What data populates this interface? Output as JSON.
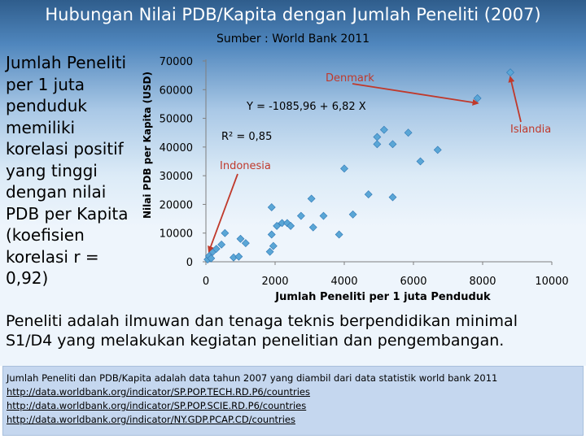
{
  "slide": {
    "title": "Hubungan Nilai PDB/Kapita dengan Jumlah Peneliti (2007)",
    "subtitle": "Sumber : World Bank 2011"
  },
  "body_left": {
    "lines": [
      "Jumlah Peneliti",
      "per 1 juta",
      "penduduk",
      "memiliki",
      "korelasi positif",
      "yang  tinggi",
      "dengan nilai",
      "PDB per Kapita",
      "(koefisien",
      "korelasi r =",
      "0,92)"
    ]
  },
  "bottom_paragraph": {
    "lines": [
      "Peneliti adalah ilmuwan dan tenaga teknis berpendidikan minimal",
      "S1/D4 yang melakukan kegiatan penelitian dan pengembangan."
    ]
  },
  "note": {
    "text": "Jumlah Peneliti  dan PDB/Kapita adalah data tahun 2007 yang diambil dari data statistik world bank 2011",
    "links": [
      "http://data.worldbank.org/indicator/SP.POP.TECH.RD.P6/countries",
      "http://data.worldbank.org/indicator/SP.POP.SCIE.RD.P6/countries",
      "http://data.worldbank.org/indicator/NY.GDP.PCAP.CD/countries"
    ]
  },
  "colors": {
    "marker": "#5aa6d6",
    "marker_stroke": "#2f77b5",
    "arrow": "#c0392b",
    "annotation_text": "#c0392b",
    "axis": "#7f7f7f"
  },
  "chart_data": {
    "type": "scatter",
    "xlabel": "Jumlah Peneliti per 1 juta Penduduk",
    "ylabel": "Nilai PDB per Kapita (USD)",
    "xlim": [
      0,
      10000
    ],
    "ylim": [
      0,
      70000
    ],
    "x_ticks": [
      "0",
      "2000",
      "4000",
      "6000",
      "8000",
      "10000"
    ],
    "y_ticks": [
      "0",
      "10000",
      "20000",
      "30000",
      "40000",
      "50000",
      "60000",
      "70000"
    ],
    "grid": false,
    "legend": "none",
    "trendline": {
      "slope": 6.82,
      "intercept": -1085.96
    },
    "annotations": {
      "equation": "Y = -1085,96 + 6,82 X",
      "r_squared": "R² = 0,85",
      "labels": [
        {
          "text": "Denmark",
          "x": 7850,
          "y": 57000
        },
        {
          "text": "Islandia",
          "x": 8800,
          "y": 66000
        },
        {
          "text": "Indonesia",
          "x": 90,
          "y": 2000
        }
      ]
    },
    "points": [
      {
        "x": 50,
        "y": 800
      },
      {
        "x": 90,
        "y": 2000
      },
      {
        "x": 150,
        "y": 1200
      },
      {
        "x": 200,
        "y": 3500
      },
      {
        "x": 300,
        "y": 4500
      },
      {
        "x": 450,
        "y": 6000
      },
      {
        "x": 550,
        "y": 10000
      },
      {
        "x": 800,
        "y": 1500
      },
      {
        "x": 950,
        "y": 1800
      },
      {
        "x": 1000,
        "y": 8000
      },
      {
        "x": 1150,
        "y": 6500
      },
      {
        "x": 1850,
        "y": 3500
      },
      {
        "x": 1950,
        "y": 5500
      },
      {
        "x": 1900,
        "y": 9500
      },
      {
        "x": 1900,
        "y": 19000
      },
      {
        "x": 2050,
        "y": 12500
      },
      {
        "x": 2200,
        "y": 13500
      },
      {
        "x": 2350,
        "y": 13500
      },
      {
        "x": 2450,
        "y": 12500
      },
      {
        "x": 2750,
        "y": 16000
      },
      {
        "x": 3100,
        "y": 12000
      },
      {
        "x": 3050,
        "y": 22000
      },
      {
        "x": 3400,
        "y": 16000
      },
      {
        "x": 3850,
        "y": 9500
      },
      {
        "x": 4000,
        "y": 32500
      },
      {
        "x": 4250,
        "y": 16500
      },
      {
        "x": 4700,
        "y": 23500
      },
      {
        "x": 4950,
        "y": 41000
      },
      {
        "x": 4950,
        "y": 43500
      },
      {
        "x": 5150,
        "y": 46000
      },
      {
        "x": 5400,
        "y": 22500
      },
      {
        "x": 5400,
        "y": 41000
      },
      {
        "x": 5850,
        "y": 45000
      },
      {
        "x": 6200,
        "y": 35000
      },
      {
        "x": 6700,
        "y": 39000
      },
      {
        "x": 7850,
        "y": 57000
      },
      {
        "x": 8800,
        "y": 66000
      }
    ]
  }
}
